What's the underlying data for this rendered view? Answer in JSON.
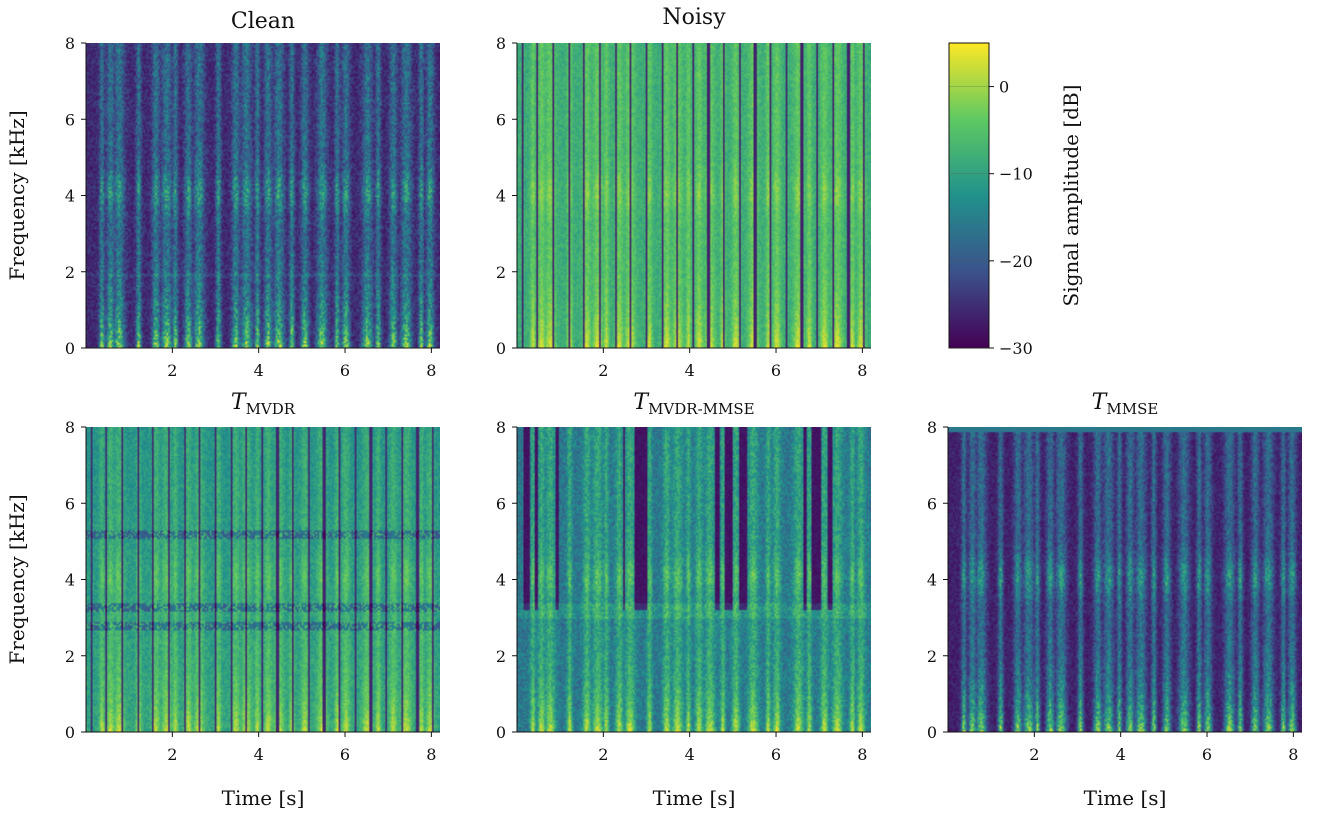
{
  "chart_data": [
    {
      "type": "heatmap",
      "title": "Clean",
      "title_sub": "",
      "xlabel": "",
      "ylabel": "Frequency [kHz]",
      "xlim": [
        0,
        8.2
      ],
      "ylim": [
        0,
        8
      ],
      "xticks": [
        2,
        4,
        6,
        8
      ],
      "yticks": [
        0,
        2,
        4,
        6,
        8
      ],
      "pattern": "clean"
    },
    {
      "type": "heatmap",
      "title": "Noisy",
      "title_sub": "",
      "xlabel": "",
      "ylabel": "",
      "xlim": [
        0,
        8.2
      ],
      "ylim": [
        0,
        8
      ],
      "xticks": [
        2,
        4,
        6,
        8
      ],
      "yticks": [
        0,
        2,
        4,
        6,
        8
      ],
      "pattern": "noisy"
    },
    {
      "type": "heatmap",
      "title": "T",
      "title_sub": "MVDR",
      "xlabel": "Time [s]",
      "ylabel": "Frequency [kHz]",
      "xlim": [
        0,
        8.2
      ],
      "ylim": [
        0,
        8
      ],
      "xticks": [
        2,
        4,
        6,
        8
      ],
      "yticks": [
        0,
        2,
        4,
        6,
        8
      ],
      "pattern": "mvdr"
    },
    {
      "type": "heatmap",
      "title": "T",
      "title_sub": "MVDR-MMSE",
      "xlabel": "Time [s]",
      "ylabel": "",
      "xlim": [
        0,
        8.2
      ],
      "ylim": [
        0,
        8
      ],
      "xticks": [
        2,
        4,
        6,
        8
      ],
      "yticks": [
        0,
        2,
        4,
        6,
        8
      ],
      "pattern": "mvdrmmse"
    },
    {
      "type": "heatmap",
      "title": "T",
      "title_sub": "MMSE",
      "xlabel": "Time [s]",
      "ylabel": "",
      "xlim": [
        0,
        8.2
      ],
      "ylim": [
        0,
        8
      ],
      "xticks": [
        2,
        4,
        6,
        8
      ],
      "yticks": [
        0,
        2,
        4,
        6,
        8
      ],
      "pattern": "mmse"
    }
  ],
  "colorbar": {
    "label": "Signal amplitude [dB]",
    "range": [
      -30,
      5
    ],
    "ticks": [
      0,
      -10,
      -20,
      -30
    ],
    "tick_labels": [
      "0",
      "−10",
      "−20",
      "−30"
    ],
    "colormap": [
      "#440154",
      "#3b528b",
      "#21918c",
      "#5ec962",
      "#fde725"
    ]
  }
}
